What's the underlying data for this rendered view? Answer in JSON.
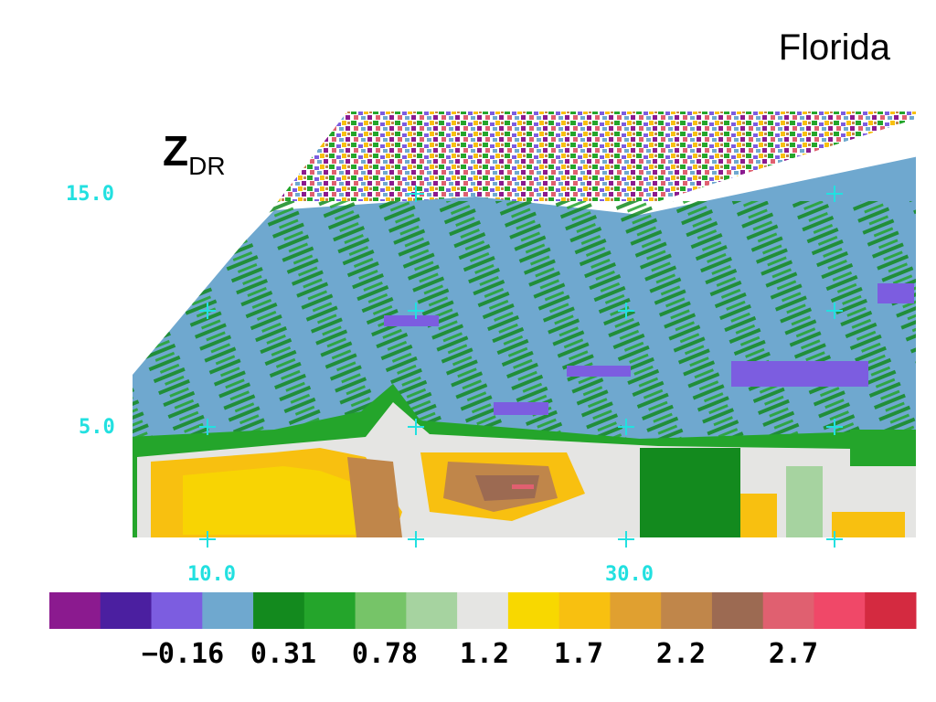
{
  "region": "Florida",
  "field": {
    "main": "Z",
    "sub": "DR"
  },
  "chart_data": {
    "type": "heatmap",
    "title": "Florida",
    "colorbar_label": "ZDR",
    "y_ticks": [
      "15.0",
      "5.0"
    ],
    "x_ticks": [
      "10.0",
      "30.0"
    ],
    "colorbar": {
      "colors": [
        "#8b1a8f",
        "#4b1fa0",
        "#7c5de0",
        "#6fa8cf",
        "#138a1e",
        "#24a52b",
        "#76c468",
        "#a6d3a0",
        "#e5e5e3",
        "#f8d800",
        "#f8c010",
        "#e0a030",
        "#c0864a",
        "#9c6a52",
        "#e06070",
        "#f04868",
        "#d42a40"
      ],
      "labels": [
        "−0.16",
        "0.31",
        "0.78",
        "1.2",
        "1.7",
        "2.2",
        "2.7"
      ]
    }
  }
}
